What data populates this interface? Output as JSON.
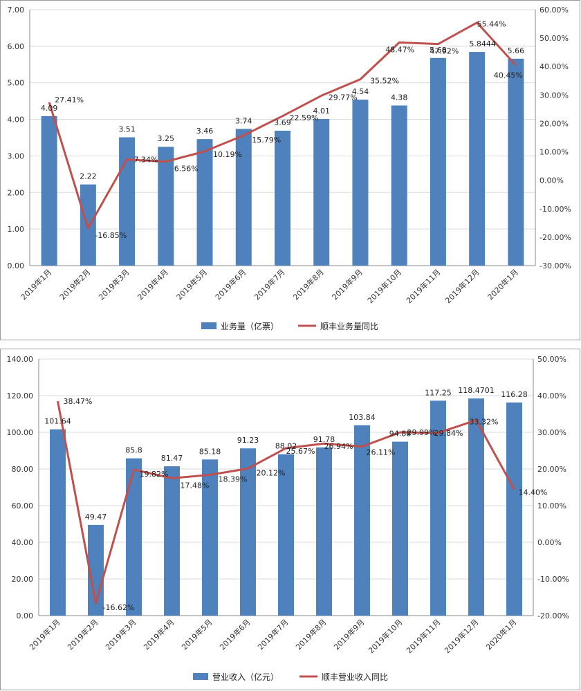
{
  "chart_data": [
    {
      "type": "bar",
      "categories": [
        "2019年1月",
        "2019年2月",
        "2019年3月",
        "2019年4月",
        "2019年5月",
        "2019年6月",
        "2019年7月",
        "2019年8月",
        "2019年9月",
        "2019年10月",
        "2019年11月",
        "2019年12月",
        "2020年1月"
      ],
      "series": [
        {
          "name": "业务量（亿票）",
          "type": "bar",
          "axis": "left",
          "color": "#4F81BD",
          "values": [
            4.09,
            2.22,
            3.51,
            3.25,
            3.46,
            3.74,
            3.69,
            4.01,
            4.54,
            4.38,
            5.68,
            5.8444,
            5.66
          ],
          "labels": [
            "4.09",
            "2.22",
            "3.51",
            "3.25",
            "3.46",
            "3.74",
            "3.69",
            "4.01",
            "4.54",
            "4.38",
            "5.68",
            "5.8444",
            "5.66"
          ]
        },
        {
          "name": "顺丰业务量同比",
          "type": "line",
          "axis": "right",
          "color": "#C0504D",
          "values": [
            27.41,
            -16.85,
            7.34,
            6.56,
            10.19,
            15.79,
            22.59,
            29.77,
            35.52,
            48.47,
            47.92,
            55.44,
            40.45
          ],
          "labels": [
            "27.41%",
            "-16.85%",
            "7.34%",
            "6.56%",
            "10.19%",
            "15.79%",
            "22.59%",
            "29.77%",
            "35.52%",
            "48.47%",
            "47.92%",
            "55.44%",
            "40.45%"
          ]
        }
      ],
      "y_left": {
        "min": 0,
        "max": 7,
        "step": 1,
        "ticks": [
          "0.00",
          "1.00",
          "2.00",
          "3.00",
          "4.00",
          "5.00",
          "6.00",
          "7.00"
        ]
      },
      "y_right": {
        "min": -30,
        "max": 60,
        "step": 10,
        "ticks": [
          "-30.00%",
          "-20.00%",
          "-10.00%",
          "0.00%",
          "10.00%",
          "20.00%",
          "30.00%",
          "40.00%",
          "50.00%",
          "60.00%"
        ]
      },
      "grid": true,
      "legend_position": "bottom"
    },
    {
      "type": "bar",
      "categories": [
        "2019年1月",
        "2019年2月",
        "2019年3月",
        "2019年4月",
        "2019年5月",
        "2019年6月",
        "2019年7月",
        "2019年8月",
        "2019年9月",
        "2019年10月",
        "2019年11月",
        "2019年12月",
        "2020年1月"
      ],
      "series": [
        {
          "name": "营业收入（亿元）",
          "type": "bar",
          "axis": "left",
          "color": "#4F81BD",
          "values": [
            101.64,
            49.47,
            85.8,
            81.47,
            85.18,
            91.23,
            88.02,
            91.78,
            103.84,
            94.88,
            117.25,
            118.4701,
            116.28
          ],
          "labels": [
            "101.64",
            "49.47",
            "85.8",
            "81.47",
            "85.18",
            "91.23",
            "88.02",
            "91.78",
            "103.84",
            "94.88",
            "117.25",
            "118.4701",
            "116.28"
          ]
        },
        {
          "name": "顺丰营业收入同比",
          "type": "line",
          "axis": "right",
          "color": "#C0504D",
          "values": [
            38.47,
            -16.62,
            19.82,
            17.48,
            18.39,
            20.12,
            25.67,
            26.94,
            26.11,
            29.99,
            29.84,
            33.32,
            14.4
          ],
          "labels": [
            "38.47%",
            "-16.62%",
            "19.82%",
            "17.48%",
            "18.39%",
            "20.12%",
            "25.67%",
            "26.94%",
            "26.11%",
            "29.99%",
            "29.84%",
            "33.32%",
            "14.40%"
          ]
        }
      ],
      "y_left": {
        "min": 0,
        "max": 140,
        "step": 20,
        "ticks": [
          "0.00",
          "20.00",
          "40.00",
          "60.00",
          "80.00",
          "100.00",
          "120.00",
          "140.00"
        ]
      },
      "y_right": {
        "min": -20,
        "max": 50,
        "step": 10,
        "ticks": [
          "-20.00%",
          "-10.00%",
          "0.00%",
          "10.00%",
          "20.00%",
          "30.00%",
          "40.00%",
          "50.00%"
        ]
      },
      "grid": true,
      "legend_position": "bottom"
    }
  ]
}
